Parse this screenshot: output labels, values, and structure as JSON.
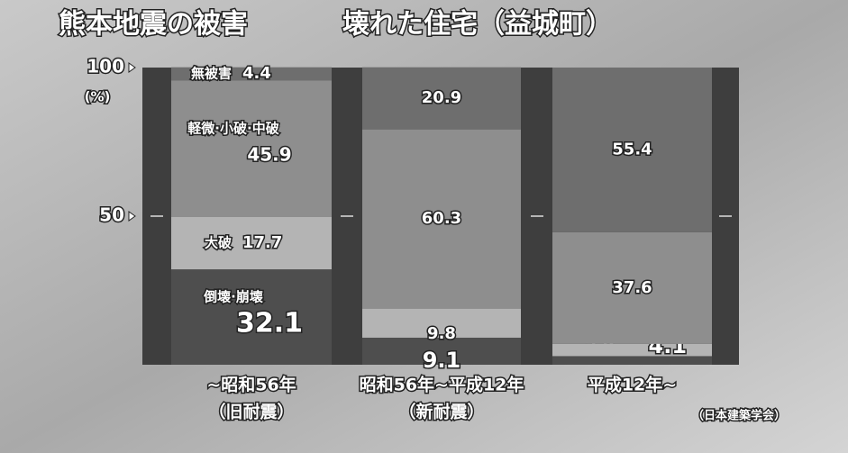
{
  "chart_data": {
    "type": "stacked_bar",
    "title": "熊本地震の被害",
    "subtitle": "壊れた住宅（益城町）",
    "y_unit": "(%)",
    "source": "（日本建築学会）",
    "categories": [
      "~昭和56年",
      "昭和56年~平成12年",
      "平成12年~"
    ],
    "category_sublabels": [
      "（旧耐震）",
      "（新耐震）",
      null
    ],
    "series": [
      {
        "name": "倒壊·崩壊",
        "color": "#4e4e4e",
        "values": [
          32.1,
          9.1,
          2.9
        ]
      },
      {
        "name": "大破",
        "color": "#b4b4b4",
        "values": [
          17.7,
          9.8,
          4.1
        ]
      },
      {
        "name": "軽微·小破·中破",
        "color": "#8e8e8e",
        "values": [
          45.9,
          60.3,
          37.6
        ]
      },
      {
        "name": "無被害",
        "color": "#6e6e6e",
        "values": [
          4.4,
          20.9,
          55.4
        ]
      }
    ],
    "ylim": [
      0,
      100
    ],
    "yticks": [
      50,
      100
    ]
  }
}
